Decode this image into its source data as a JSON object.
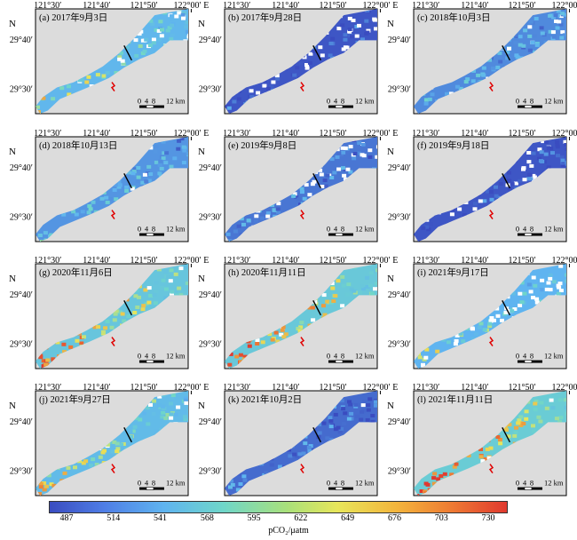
{
  "colors": {
    "land": "#dcdcdc",
    "frame": "#000000",
    "low": "#3a4cc0",
    "mid": "#6fd6c9",
    "high": "#e0392f",
    "cloud": "#ffffff"
  },
  "axes": {
    "lon_labels": [
      "121°30′",
      "121°40′",
      "121°50′",
      "122°00′ E"
    ],
    "lat_labels": [
      "29°40′",
      "29°30′"
    ],
    "north": "N"
  },
  "scalebar": {
    "ticks": [
      "0",
      "4",
      "8",
      "12 km"
    ]
  },
  "panels": [
    {
      "label": "(a) 2017年9月3日",
      "level": 0.55,
      "cloud": 0.35
    },
    {
      "label": "(b) 2017年9月28日",
      "level": 0.05,
      "cloud": 0.45
    },
    {
      "label": "(c) 2018年10月3日",
      "level": 0.3,
      "cloud": 0.1
    },
    {
      "label": "(d) 2018年10月13日",
      "level": 0.35,
      "cloud": 0.05
    },
    {
      "label": "(e) 2019年9月8日",
      "level": 0.2,
      "cloud": 0.4
    },
    {
      "label": "(f) 2019年9月18日",
      "level": 0.05,
      "cloud": 0.35
    },
    {
      "label": "(g) 2020年11月6日",
      "level": 0.75,
      "cloud": 0.05
    },
    {
      "label": "(h) 2020年11月11日",
      "level": 0.8,
      "cloud": 0.15
    },
    {
      "label": "(i) 2021年9月17日",
      "level": 0.5,
      "cloud": 0.45
    },
    {
      "label": "(j) 2021年9月27日",
      "level": 0.6,
      "cloud": 0.1
    },
    {
      "label": "(k) 2021年10月2日",
      "level": 0.15,
      "cloud": 0.05
    },
    {
      "label": "(l) 2021年11月11日",
      "level": 0.85,
      "cloud": 0.05
    }
  ],
  "colorbar": {
    "ticks": [
      "487",
      "514",
      "541",
      "568",
      "595",
      "622",
      "649",
      "676",
      "703",
      "730"
    ],
    "title": "pCO₂/μatm"
  }
}
